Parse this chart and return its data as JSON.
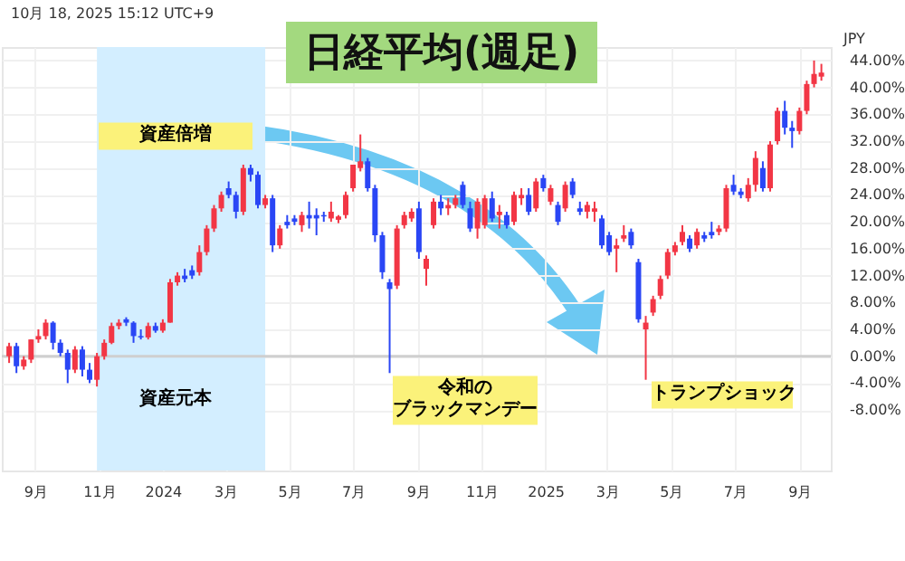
{
  "chart_data": {
    "type": "candlestick",
    "title": "日経平均(週足)",
    "annotations": [
      "10月 18, 2025 15:12 UTC+9",
      "JPY",
      "資産倍増",
      "資産元本",
      "令和の",
      "ブラックマンデー",
      "トランプショック"
    ],
    "x": [
      "2023-08-07",
      "2023-08-14",
      "2023-08-21",
      "2023-08-28",
      "2023-09-04",
      "2023-09-11",
      "2023-09-18",
      "2023-09-25",
      "2023-10-02",
      "2023-10-09",
      "2023-10-16",
      "2023-10-23",
      "2023-10-30",
      "2023-11-06",
      "2023-11-13",
      "2023-11-20",
      "2023-11-27",
      "2023-12-04",
      "2023-12-11",
      "2023-12-18",
      "2023-12-25",
      "2024-01-01",
      "2024-01-08",
      "2024-01-15",
      "2024-01-22",
      "2024-01-29",
      "2024-02-05",
      "2024-02-12",
      "2024-02-19",
      "2024-02-26",
      "2024-03-04",
      "2024-03-11",
      "2024-03-18",
      "2024-03-25",
      "2024-04-01",
      "2024-04-08",
      "2024-04-15",
      "2024-04-22",
      "2024-04-29",
      "2024-05-06",
      "2024-05-13",
      "2024-05-20",
      "2024-05-27",
      "2024-06-03",
      "2024-06-10",
      "2024-06-17",
      "2024-06-24",
      "2024-07-01",
      "2024-07-08",
      "2024-07-15",
      "2024-07-22",
      "2024-07-29",
      "2024-08-05",
      "2024-08-12",
      "2024-08-19",
      "2024-08-26",
      "2024-09-02",
      "2024-09-09",
      "2024-09-16",
      "2024-09-23",
      "2024-09-30",
      "2024-10-07",
      "2024-10-14",
      "2024-10-21",
      "2024-10-28",
      "2024-11-04",
      "2024-11-11",
      "2024-11-18",
      "2024-11-25",
      "2024-12-02",
      "2024-12-09",
      "2024-12-16",
      "2024-12-23",
      "2024-12-30",
      "2025-01-06",
      "2025-01-13",
      "2025-01-20",
      "2025-01-27",
      "2025-02-03",
      "2025-02-10",
      "2025-02-17",
      "2025-02-24",
      "2025-03-03",
      "2025-03-10",
      "2025-03-17",
      "2025-03-24",
      "2025-03-31",
      "2025-04-07",
      "2025-04-14",
      "2025-04-21",
      "2025-04-28",
      "2025-05-05",
      "2025-05-12",
      "2025-05-19",
      "2025-05-26",
      "2025-06-02",
      "2025-06-09",
      "2025-06-16",
      "2025-06-23",
      "2025-06-30",
      "2025-07-07",
      "2025-07-14",
      "2025-07-21",
      "2025-07-28",
      "2025-08-04",
      "2025-08-11",
      "2025-08-18",
      "2025-08-25",
      "2025-09-01",
      "2025-09-08",
      "2025-09-15",
      "2025-09-22"
    ],
    "ohlc": [
      [
        0,
        2,
        -1,
        1.5
      ],
      [
        1.5,
        2,
        -2.5,
        -1.5
      ],
      [
        -1.5,
        0,
        -2,
        -0.5
      ],
      [
        -0.5,
        2.5,
        -1,
        2.5
      ],
      [
        2.5,
        4,
        2,
        3
      ],
      [
        3,
        5.5,
        2.5,
        5
      ],
      [
        5,
        5.2,
        1,
        2
      ],
      [
        2,
        2.5,
        0,
        0.5
      ],
      [
        0.5,
        1,
        -4,
        -2
      ],
      [
        -2,
        1.5,
        -2.5,
        1
      ],
      [
        1,
        1.5,
        -3,
        -2
      ],
      [
        -2,
        -1,
        -4,
        -3.5
      ],
      [
        -3.5,
        0.5,
        -4.5,
        0
      ],
      [
        0,
        2.5,
        -0.5,
        2
      ],
      [
        2,
        5,
        1.8,
        4.5
      ],
      [
        4.5,
        5.5,
        4,
        5
      ],
      [
        5.5,
        5.8,
        4.5,
        5
      ],
      [
        5,
        5.2,
        2,
        3
      ],
      [
        3,
        4,
        2.5,
        2.8
      ],
      [
        2.8,
        5,
        2.5,
        4.5
      ],
      [
        4.5,
        5,
        3.5,
        3.8
      ],
      [
        3.8,
        5.5,
        3.5,
        5
      ],
      [
        5,
        11.5,
        5,
        11
      ],
      [
        11,
        12.5,
        10.5,
        12
      ],
      [
        12,
        13,
        11,
        11.5
      ],
      [
        12.8,
        13.5,
        11.5,
        12
      ],
      [
        12.5,
        16.5,
        12,
        15.5
      ],
      [
        15.5,
        19.5,
        15,
        19
      ],
      [
        19,
        22.5,
        18.5,
        22
      ],
      [
        22,
        24.5,
        21.5,
        24
      ],
      [
        25,
        26,
        23.5,
        24
      ],
      [
        24,
        24.5,
        20.5,
        21.5
      ],
      [
        21.5,
        28.5,
        21,
        28
      ],
      [
        28,
        28.5,
        26,
        27
      ],
      [
        27,
        27.5,
        22,
        22.5
      ],
      [
        22.5,
        24,
        22,
        23.5
      ],
      [
        23.5,
        24,
        15.5,
        16.5
      ],
      [
        16.5,
        19.5,
        16,
        19
      ],
      [
        20,
        21,
        19,
        19.5
      ],
      [
        20.5,
        21,
        19.5,
        20
      ],
      [
        19.5,
        21.5,
        18.5,
        21
      ],
      [
        21,
        23,
        19,
        20.5
      ],
      [
        21,
        22,
        18,
        20.5
      ],
      [
        21,
        21.5,
        20,
        20.8
      ],
      [
        20.5,
        23,
        20,
        21.5
      ],
      [
        20.3,
        21,
        19.8,
        20.8
      ],
      [
        21,
        24.5,
        20.5,
        24
      ],
      [
        25,
        28.5,
        24.5,
        28.5
      ],
      [
        28,
        33,
        27.5,
        29
      ],
      [
        29,
        29.5,
        24.5,
        25
      ],
      [
        25,
        25.5,
        17,
        18
      ],
      [
        18,
        18.5,
        11.5,
        12.5
      ],
      [
        11,
        11.5,
        -2.5,
        10
      ],
      [
        10.5,
        19.5,
        10,
        19
      ],
      [
        19.5,
        21.5,
        19,
        21
      ],
      [
        20.5,
        22,
        20,
        21.5
      ],
      [
        22,
        23,
        14.5,
        15.5
      ],
      [
        13,
        15,
        10.5,
        14.5
      ],
      [
        19.5,
        23.5,
        19,
        23
      ],
      [
        23,
        24,
        21,
        22
      ],
      [
        22,
        23.5,
        21,
        22.5
      ],
      [
        22.5,
        24,
        22,
        23.5
      ],
      [
        25.5,
        26,
        22,
        22.5
      ],
      [
        22,
        23,
        18.5,
        19
      ],
      [
        19,
        23.5,
        17.5,
        23
      ],
      [
        19.5,
        24,
        19,
        23.5
      ],
      [
        23.5,
        24.5,
        20,
        20.5
      ],
      [
        21,
        22.5,
        19,
        21.5
      ],
      [
        21,
        21.5,
        19,
        19.5
      ],
      [
        20,
        24.5,
        19.5,
        24
      ],
      [
        23.5,
        25,
        22.5,
        24
      ],
      [
        24,
        25,
        21,
        21.5
      ],
      [
        22,
        26.5,
        21.5,
        26
      ],
      [
        26.5,
        27,
        24.5,
        25
      ],
      [
        23,
        25.5,
        22.5,
        25
      ],
      [
        22.5,
        23,
        19.5,
        20
      ],
      [
        22,
        26,
        21.5,
        25.5
      ],
      [
        26,
        26.5,
        23.5,
        24
      ],
      [
        22,
        23,
        21,
        21.5
      ],
      [
        21.5,
        23,
        20.5,
        22.5
      ],
      [
        21.5,
        23,
        20,
        22
      ],
      [
        20.5,
        21,
        16,
        16.5
      ],
      [
        18,
        18.5,
        15,
        15.5
      ],
      [
        16,
        17.5,
        12.5,
        16.5
      ],
      [
        17.5,
        19.5,
        17,
        18
      ],
      [
        18.5,
        19,
        16,
        16.5
      ],
      [
        14,
        14.5,
        5,
        5.5
      ],
      [
        4,
        6,
        -3.5,
        5
      ],
      [
        6.5,
        9,
        6,
        8.5
      ],
      [
        9,
        12,
        8.5,
        11.5
      ],
      [
        12,
        16,
        11.5,
        15.5
      ],
      [
        15.5,
        17,
        15,
        16.5
      ],
      [
        17,
        19.5,
        16.5,
        18.5
      ],
      [
        17.5,
        18,
        15.5,
        16
      ],
      [
        16.5,
        19,
        16,
        18.5
      ],
      [
        18,
        18.5,
        17,
        17.5
      ],
      [
        18.5,
        20,
        17.5,
        18
      ],
      [
        18.5,
        19.5,
        18,
        19
      ],
      [
        19,
        25.5,
        18.5,
        25
      ],
      [
        25.5,
        27,
        24,
        24.5
      ],
      [
        24.5,
        25,
        23.5,
        24
      ],
      [
        23.5,
        26.5,
        23,
        25.5
      ],
      [
        25.5,
        30.5,
        24.5,
        29.5
      ],
      [
        28,
        29,
        24.5,
        25
      ],
      [
        25,
        32,
        24.5,
        31.5
      ],
      [
        32,
        37,
        31.5,
        36.5
      ],
      [
        36.5,
        38,
        33,
        34
      ],
      [
        34,
        35,
        31,
        33.5
      ],
      [
        33.5,
        37,
        33,
        36.5
      ],
      [
        36.5,
        41,
        36,
        40.5
      ],
      [
        40.5,
        44,
        40,
        42
      ],
      [
        41.6,
        43.5,
        41,
        42.2
      ]
    ],
    "colors": [
      "#f23645",
      "#2a46f5",
      "#f23645",
      "#f23645",
      "#f23645",
      "#f23645",
      "#2a46f5",
      "#2a46f5",
      "#2a46f5",
      "#f23645",
      "#2a46f5",
      "#2a46f5",
      "#f23645",
      "#f23645",
      "#f23645",
      "#f23645",
      "#2a46f5",
      "#2a46f5",
      "#2a46f5",
      "#f23645",
      "#2a46f5",
      "#f23645",
      "#f23645",
      "#f23645",
      "#2a46f5",
      "#2a46f5",
      "#f23645",
      "#f23645",
      "#f23645",
      "#f23645",
      "#2a46f5",
      "#2a46f5",
      "#f23645",
      "#2a46f5",
      "#2a46f5",
      "#f23645",
      "#2a46f5",
      "#f23645",
      "#2a46f5",
      "#2a46f5",
      "#f23645",
      "#2a46f5",
      "#2a46f5",
      "#2a46f5",
      "#f23645",
      "#f23645",
      "#f23645",
      "#f23645",
      "#f23645",
      "#2a46f5",
      "#2a46f5",
      "#2a46f5",
      "#2a46f5",
      "#f23645",
      "#f23645",
      "#f23645",
      "#2a46f5",
      "#f23645",
      "#f23645",
      "#2a46f5",
      "#f23645",
      "#f23645",
      "#2a46f5",
      "#2a46f5",
      "#f23645",
      "#f23645",
      "#2a46f5",
      "#f23645",
      "#2a46f5",
      "#f23645",
      "#f23645",
      "#2a46f5",
      "#f23645",
      "#2a46f5",
      "#f23645",
      "#2a46f5",
      "#f23645",
      "#2a46f5",
      "#2a46f5",
      "#f23645",
      "#f23645",
      "#2a46f5",
      "#2a46f5",
      "#f23645",
      "#f23645",
      "#2a46f5",
      "#2a46f5",
      "#f23645",
      "#f23645",
      "#f23645",
      "#f23645",
      "#f23645",
      "#f23645",
      "#2a46f5",
      "#f23645",
      "#2a46f5",
      "#2a46f5",
      "#f23645",
      "#f23645",
      "#2a46f5",
      "#2a46f5",
      "#f23645",
      "#f23645",
      "#2a46f5",
      "#f23645",
      "#f23645",
      "#2a46f5",
      "#2a46f5",
      "#f23645",
      "#f23645",
      "#f23645",
      "#f23645"
    ],
    "xlim": [
      "2023-07-31",
      "2025-10-01"
    ],
    "xticks": [
      {
        "value": "2023-09-01",
        "label": "9月"
      },
      {
        "value": "2023-11-01",
        "label": "11月"
      },
      {
        "value": "2024-01-01",
        "label": "2024"
      },
      {
        "value": "2024-03-01",
        "label": "3月"
      },
      {
        "value": "2024-05-01",
        "label": "5月"
      },
      {
        "value": "2024-07-01",
        "label": "7月"
      },
      {
        "value": "2024-09-01",
        "label": "9月"
      },
      {
        "value": "2024-11-01",
        "label": "11月"
      },
      {
        "value": "2025-01-01",
        "label": "2025"
      },
      {
        "value": "2025-03-01",
        "label": "3月"
      },
      {
        "value": "2025-05-01",
        "label": "5月"
      },
      {
        "value": "2025-07-01",
        "label": "7月"
      },
      {
        "value": "2025-09-01",
        "label": "9月"
      }
    ],
    "ylim": [
      -17,
      46
    ],
    "yticks": [
      {
        "value": -8,
        "label": "-8.00%"
      },
      {
        "value": -4,
        "label": "-4.00%"
      },
      {
        "value": 0,
        "label": "0.00%"
      },
      {
        "value": 4,
        "label": "4.00%"
      },
      {
        "value": 8,
        "label": "8.00%"
      },
      {
        "value": 12,
        "label": "12.00%"
      },
      {
        "value": 16,
        "label": "16.00%"
      },
      {
        "value": 20,
        "label": "20.00%"
      },
      {
        "value": 24,
        "label": "24.00%"
      },
      {
        "value": 28,
        "label": "28.00%"
      },
      {
        "value": 32,
        "label": "32.00%"
      },
      {
        "value": 36,
        "label": "36.00%"
      },
      {
        "value": 40,
        "label": "40.00%"
      },
      {
        "value": 44,
        "label": "44.00%"
      }
    ],
    "bands": [
      {
        "axis": "x",
        "from": "2023-10-30",
        "to": "2024-04-08",
        "color": "#d3eeff"
      }
    ],
    "ref_lines": [
      {
        "axis": "y",
        "value": 0,
        "color": "#cfcfcf"
      }
    ],
    "grid": true
  }
}
